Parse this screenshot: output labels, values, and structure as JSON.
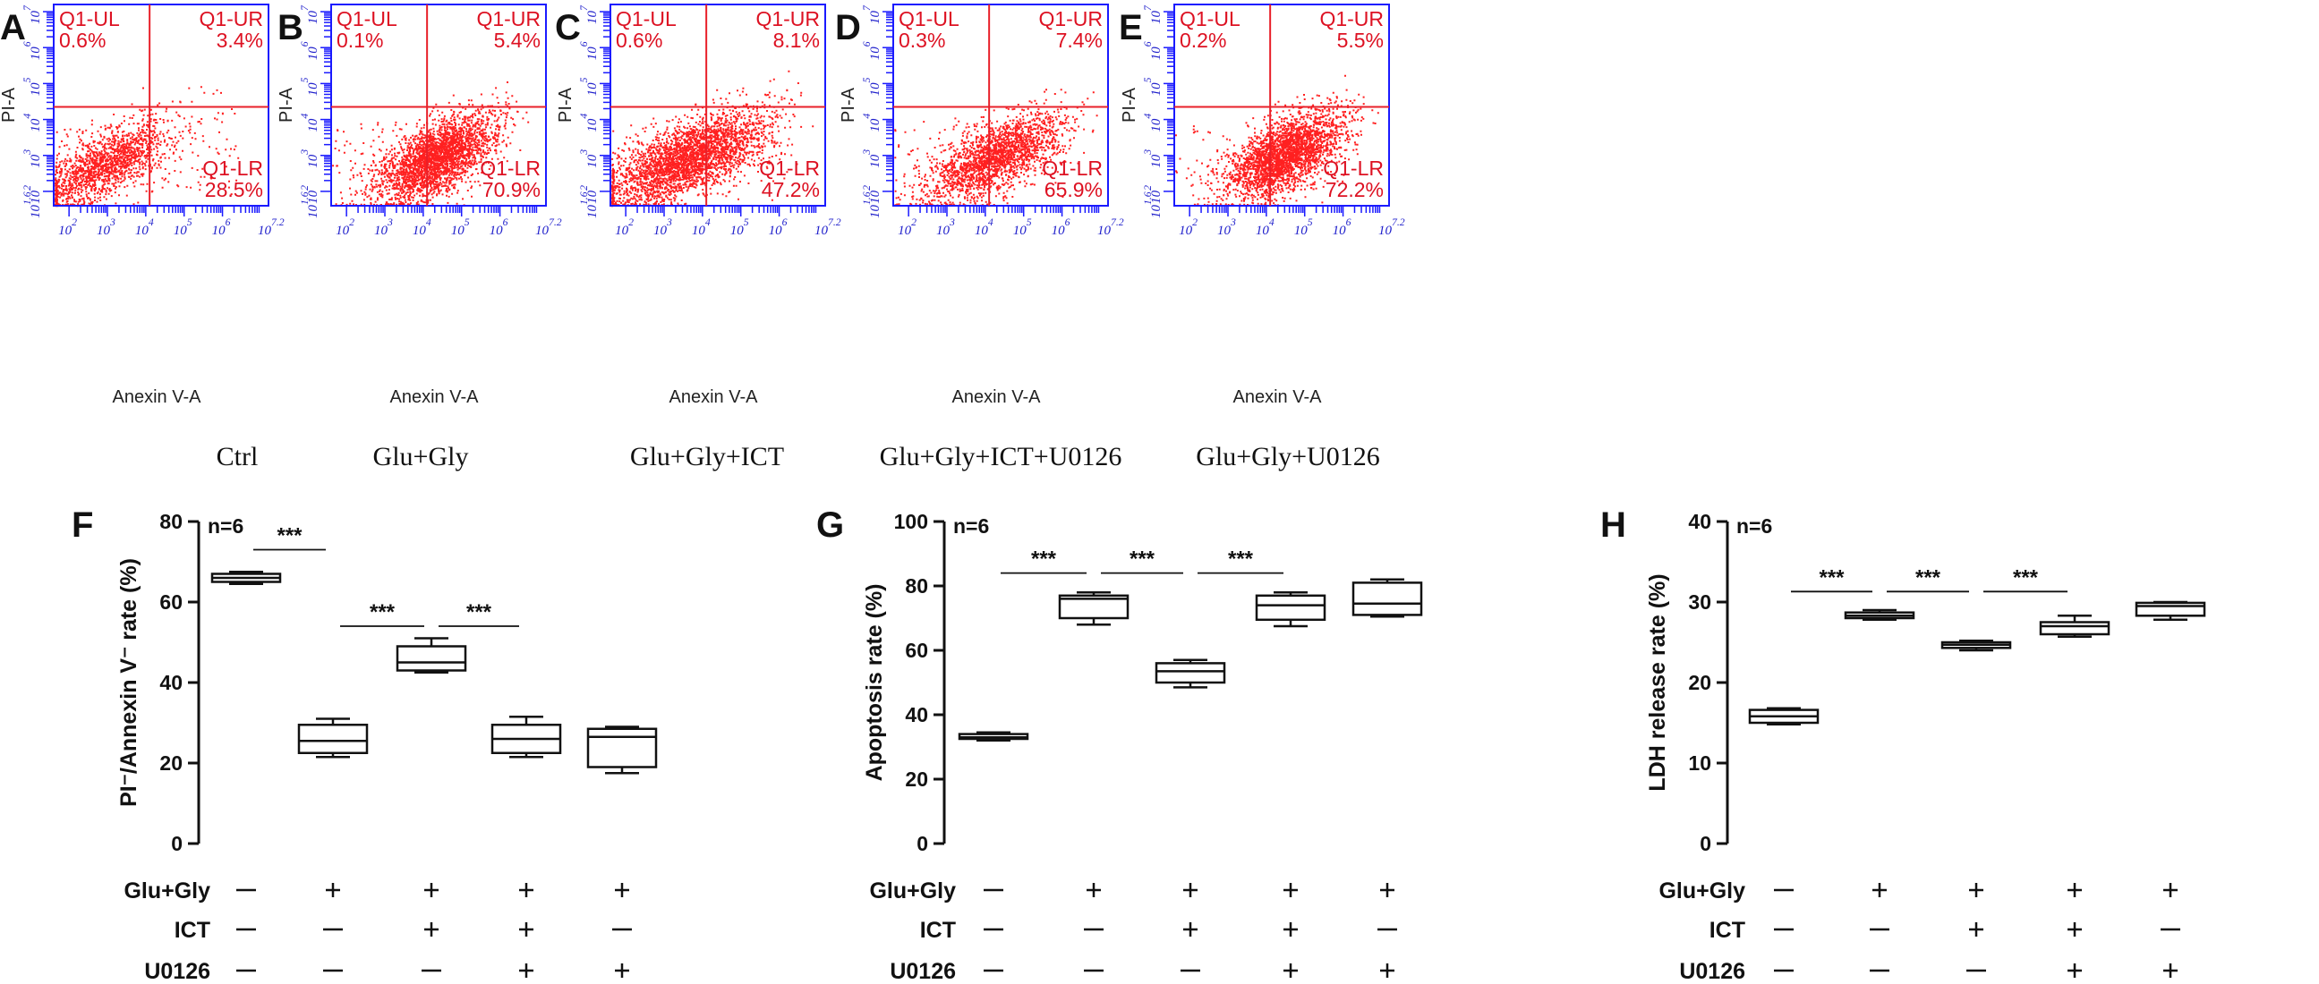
{
  "chart_data": [
    {
      "type": "scatter",
      "panel": "A",
      "group": "Ctrl",
      "xlabel": "Anexin V-A",
      "ylabel": "PI-A",
      "x_ticks": [
        "10^2",
        "10^3",
        "10^4",
        "10^5",
        "10^6",
        "10^7.2"
      ],
      "y_ticks": [
        "10^1.6",
        "10^2",
        "10^3",
        "10^4",
        "10^5",
        "10^6",
        "10^7"
      ],
      "xlim": [
        1.6,
        7.2
      ],
      "ylim": [
        1.6,
        7.2
      ],
      "quadrants": [
        {
          "name": "Q1-UL",
          "value": "0.6%"
        },
        {
          "name": "Q1-UR",
          "value": "3.4%"
        },
        {
          "name": "Q1-LR",
          "value": "28.5%"
        }
      ]
    },
    {
      "type": "scatter",
      "panel": "B",
      "group": "Glu+Gly",
      "xlabel": "Anexin V-A",
      "ylabel": "PI-A",
      "x_ticks": [
        "10^2",
        "10^3",
        "10^4",
        "10^5",
        "10^6",
        "10^7.2"
      ],
      "y_ticks": [
        "10^1.6",
        "10^2",
        "10^3",
        "10^4",
        "10^5",
        "10^6",
        "10^7"
      ],
      "xlim": [
        1.6,
        7.2
      ],
      "ylim": [
        1.6,
        7.2
      ],
      "quadrants": [
        {
          "name": "Q1-UL",
          "value": "0.1%"
        },
        {
          "name": "Q1-UR",
          "value": "5.4%"
        },
        {
          "name": "Q1-LR",
          "value": "70.9%"
        }
      ]
    },
    {
      "type": "scatter",
      "panel": "C",
      "group": "Glu+Gly+ICT",
      "xlabel": "Anexin V-A",
      "ylabel": "PI-A",
      "x_ticks": [
        "10^2",
        "10^3",
        "10^4",
        "10^5",
        "10^6",
        "10^7.2"
      ],
      "y_ticks": [
        "10^1.6",
        "10^2",
        "10^3",
        "10^4",
        "10^5",
        "10^6",
        "10^7"
      ],
      "xlim": [
        1.6,
        7.2
      ],
      "ylim": [
        1.6,
        7.2
      ],
      "quadrants": [
        {
          "name": "Q1-UL",
          "value": "0.6%"
        },
        {
          "name": "Q1-UR",
          "value": "8.1%"
        },
        {
          "name": "Q1-LR",
          "value": "47.2%"
        }
      ]
    },
    {
      "type": "scatter",
      "panel": "D",
      "group": "Glu+Gly+ICT+U0126",
      "xlabel": "Anexin V-A",
      "ylabel": "PI-A",
      "x_ticks": [
        "10^2",
        "10^3",
        "10^4",
        "10^5",
        "10^6",
        "10^7.2"
      ],
      "y_ticks": [
        "10^1.6",
        "10^2",
        "10^3",
        "10^4",
        "10^5",
        "10^6",
        "10^7"
      ],
      "xlim": [
        1.6,
        7.2
      ],
      "ylim": [
        1.6,
        7.2
      ],
      "quadrants": [
        {
          "name": "Q1-UL",
          "value": "0.3%"
        },
        {
          "name": "Q1-UR",
          "value": "7.4%"
        },
        {
          "name": "Q1-LR",
          "value": "65.9%"
        }
      ]
    },
    {
      "type": "scatter",
      "panel": "E",
      "group": "Glu+Gly+U0126",
      "xlabel": "Anexin V-A",
      "ylabel": "PI-A",
      "x_ticks": [
        "10^2",
        "10^3",
        "10^4",
        "10^5",
        "10^6",
        "10^7.2"
      ],
      "y_ticks": [
        "10^1.6",
        "10^2",
        "10^3",
        "10^4",
        "10^5",
        "10^6",
        "10^7"
      ],
      "xlim": [
        1.6,
        7.2
      ],
      "ylim": [
        1.6,
        7.2
      ],
      "quadrants": [
        {
          "name": "Q1-UL",
          "value": "0.2%"
        },
        {
          "name": "Q1-UR",
          "value": "5.5%"
        },
        {
          "name": "Q1-LR",
          "value": "72.2%"
        }
      ]
    },
    {
      "type": "box",
      "panel": "F",
      "ylabel": "PI⁻/Annexin V⁻ rate (%)",
      "n_label": "n=6",
      "ylim": [
        0,
        80
      ],
      "yticks": [
        0,
        20,
        40,
        60,
        80
      ],
      "boxes": [
        {
          "min": 64.5,
          "q1": 65.0,
          "median": 66.0,
          "q3": 67.0,
          "max": 67.5
        },
        {
          "min": 21.5,
          "q1": 22.5,
          "median": 25.5,
          "q3": 29.5,
          "max": 31.0
        },
        {
          "min": 42.5,
          "q1": 43.0,
          "median": 45.0,
          "q3": 49.0,
          "max": 51.0
        },
        {
          "min": 21.5,
          "q1": 22.5,
          "median": 26.0,
          "q3": 29.5,
          "max": 31.5
        },
        {
          "min": 17.5,
          "q1": 19.0,
          "median": 26.5,
          "q3": 28.5,
          "max": 29.0
        }
      ],
      "sig": [
        {
          "from": 0,
          "to": 1,
          "y": 73,
          "label": "***"
        },
        {
          "from": 1,
          "to": 2,
          "y": 54,
          "label": "***"
        },
        {
          "from": 2,
          "to": 3,
          "y": 54,
          "label": "***"
        }
      ]
    },
    {
      "type": "box",
      "panel": "G",
      "ylabel": "Apoptosis rate (%)",
      "n_label": "n=6",
      "ylim": [
        0,
        100
      ],
      "yticks": [
        0,
        20,
        40,
        60,
        80,
        100
      ],
      "boxes": [
        {
          "min": 32.0,
          "q1": 32.5,
          "median": 33.0,
          "q3": 34.0,
          "max": 34.5
        },
        {
          "min": 68.0,
          "q1": 70.0,
          "median": 76.0,
          "q3": 77.0,
          "max": 78.0
        },
        {
          "min": 48.5,
          "q1": 50.0,
          "median": 53.5,
          "q3": 56.0,
          "max": 57.0
        },
        {
          "min": 67.5,
          "q1": 69.5,
          "median": 74.0,
          "q3": 77.0,
          "max": 78.0
        },
        {
          "min": 70.5,
          "q1": 71.0,
          "median": 74.5,
          "q3": 81.0,
          "max": 82.0
        }
      ],
      "sig": [
        {
          "from": 0,
          "to": 1,
          "y": 84,
          "label": "***"
        },
        {
          "from": 1,
          "to": 2,
          "y": 84,
          "label": "***"
        },
        {
          "from": 2,
          "to": 3,
          "y": 84,
          "label": "***"
        }
      ]
    },
    {
      "type": "box",
      "panel": "H",
      "ylabel": "LDH release rate (%)",
      "n_label": "n=6",
      "ylim": [
        0,
        40
      ],
      "yticks": [
        0,
        10,
        20,
        30,
        40
      ],
      "boxes": [
        {
          "min": 14.8,
          "q1": 15.0,
          "median": 15.8,
          "q3": 16.6,
          "max": 16.8
        },
        {
          "min": 27.8,
          "q1": 28.0,
          "median": 28.3,
          "q3": 28.7,
          "max": 29.0
        },
        {
          "min": 24.0,
          "q1": 24.3,
          "median": 24.7,
          "q3": 25.0,
          "max": 25.2
        },
        {
          "min": 25.7,
          "q1": 26.0,
          "median": 27.0,
          "q3": 27.5,
          "max": 28.3
        },
        {
          "min": 27.8,
          "q1": 28.3,
          "median": 29.5,
          "q3": 29.9,
          "max": 30.0
        }
      ],
      "sig": [
        {
          "from": 0,
          "to": 1,
          "y": 31.3,
          "label": "***"
        },
        {
          "from": 1,
          "to": 2,
          "y": 31.3,
          "label": "***"
        },
        {
          "from": 2,
          "to": 3,
          "y": 31.3,
          "label": "***"
        }
      ]
    }
  ],
  "conditions": {
    "row_labels": [
      "Glu+Gly",
      "ICT",
      "U0126"
    ],
    "matrix": [
      [
        "—",
        "+",
        "+",
        "+",
        "+"
      ],
      [
        "—",
        "—",
        "+",
        "+",
        "—"
      ],
      [
        "—",
        "—",
        "—",
        "+",
        "+"
      ]
    ]
  },
  "colors": {
    "dots": "#ff2020",
    "quad_text": "#dd1122",
    "axis_blue": "#1a1aff",
    "tick_blue": "#2222cc",
    "black": "#111111"
  }
}
